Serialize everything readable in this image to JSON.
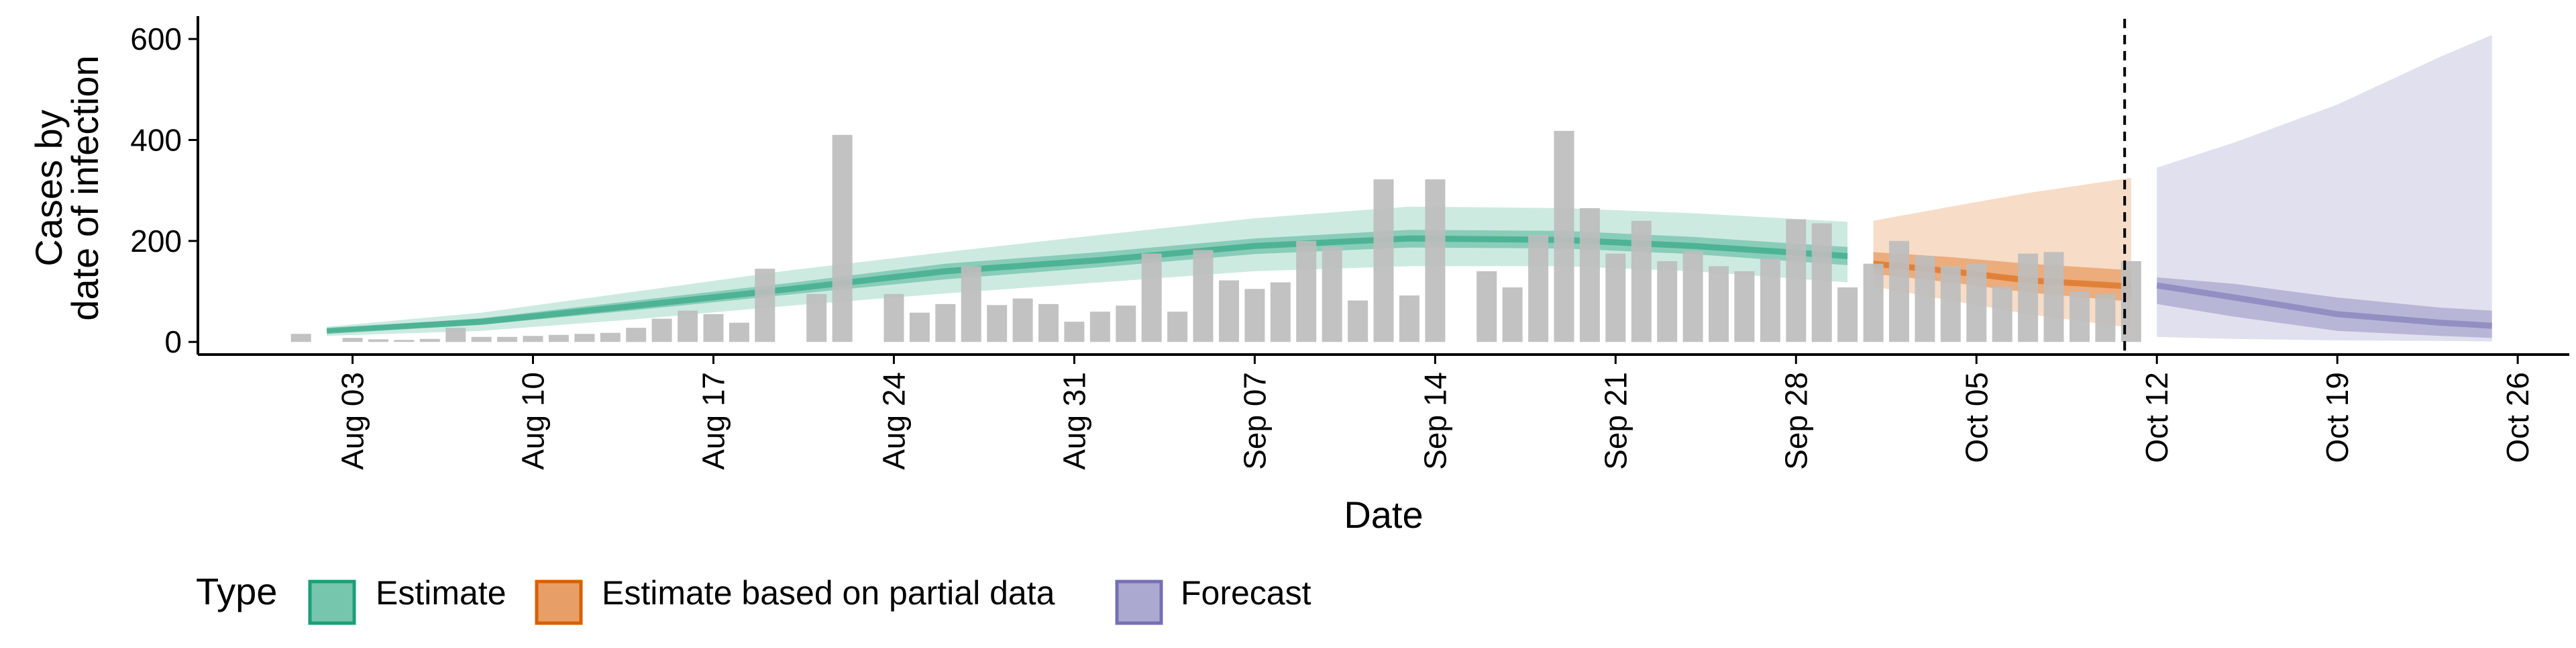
{
  "chart_data": {
    "type": "bar",
    "xlabel": "Date",
    "ylabel_lines": [
      "Cases by",
      "date of infection"
    ],
    "ylim": [
      -25,
      640
    ],
    "yticks": [
      0,
      200,
      400,
      600
    ],
    "x_start_date": "2020-07-28",
    "x_end_date": "2020-10-28",
    "xticks": [
      {
        "date": "2020-08-03",
        "label": "Aug 03"
      },
      {
        "date": "2020-08-10",
        "label": "Aug 10"
      },
      {
        "date": "2020-08-17",
        "label": "Aug 17"
      },
      {
        "date": "2020-08-24",
        "label": "Aug 24"
      },
      {
        "date": "2020-08-31",
        "label": "Aug 31"
      },
      {
        "date": "2020-09-07",
        "label": "Sep 07"
      },
      {
        "date": "2020-09-14",
        "label": "Sep 14"
      },
      {
        "date": "2020-09-21",
        "label": "Sep 21"
      },
      {
        "date": "2020-09-28",
        "label": "Sep 28"
      },
      {
        "date": "2020-10-05",
        "label": "Oct 05"
      },
      {
        "date": "2020-10-12",
        "label": "Oct 12"
      },
      {
        "date": "2020-10-19",
        "label": "Oct 19"
      },
      {
        "date": "2020-10-26",
        "label": "Oct 26"
      }
    ],
    "vline_date": "2020-10-11",
    "bars": {
      "color": "#bdbdbd",
      "dates": [
        "2020-08-01",
        "2020-08-03",
        "2020-08-04",
        "2020-08-05",
        "2020-08-06",
        "2020-08-07",
        "2020-08-08",
        "2020-08-09",
        "2020-08-10",
        "2020-08-11",
        "2020-08-12",
        "2020-08-13",
        "2020-08-14",
        "2020-08-15",
        "2020-08-16",
        "2020-08-17",
        "2020-08-18",
        "2020-08-19",
        "2020-08-21",
        "2020-08-22",
        "2020-08-24",
        "2020-08-25",
        "2020-08-26",
        "2020-08-27",
        "2020-08-28",
        "2020-08-29",
        "2020-08-30",
        "2020-08-31",
        "2020-09-01",
        "2020-09-02",
        "2020-09-03",
        "2020-09-04",
        "2020-09-05",
        "2020-09-06",
        "2020-09-07",
        "2020-09-08",
        "2020-09-09",
        "2020-09-10",
        "2020-09-11",
        "2020-09-12",
        "2020-09-13",
        "2020-09-14",
        "2020-09-16",
        "2020-09-17",
        "2020-09-18",
        "2020-09-19",
        "2020-09-20",
        "2020-09-21",
        "2020-09-22",
        "2020-09-23",
        "2020-09-24",
        "2020-09-25",
        "2020-09-26",
        "2020-09-27",
        "2020-09-28",
        "2020-09-29",
        "2020-09-30",
        "2020-10-01",
        "2020-10-02",
        "2020-10-03",
        "2020-10-04",
        "2020-10-05",
        "2020-10-06",
        "2020-10-07",
        "2020-10-08",
        "2020-10-09",
        "2020-10-10",
        "2020-10-11"
      ],
      "values": [
        16,
        8,
        5,
        4,
        6,
        28,
        10,
        10,
        12,
        14,
        16,
        18,
        28,
        46,
        62,
        55,
        38,
        145,
        95,
        410,
        95,
        58,
        75,
        150,
        73,
        86,
        75,
        40,
        60,
        72,
        175,
        60,
        182,
        122,
        105,
        118,
        200,
        188,
        82,
        322,
        92,
        322,
        140,
        108,
        212,
        418,
        265,
        175,
        240,
        160,
        180,
        150,
        140,
        165,
        243,
        235,
        108,
        155,
        200,
        170,
        150,
        155,
        110,
        175,
        178,
        100,
        95,
        160
      ]
    },
    "series": [
      {
        "name": "Estimate",
        "color": "#1b9e77",
        "dates": [
          "2020-08-02",
          "2020-08-08",
          "2020-08-14",
          "2020-08-20",
          "2020-08-26",
          "2020-09-01",
          "2020-09-07",
          "2020-09-13",
          "2020-09-19",
          "2020-09-24",
          "2020-09-30"
        ],
        "median": [
          22,
          40,
          72,
          105,
          140,
          162,
          190,
          205,
          202,
          190,
          170
        ],
        "inner_low": [
          18,
          34,
          63,
          94,
          124,
          148,
          174,
          187,
          185,
          174,
          152
        ],
        "inner_high": [
          26,
          47,
          82,
          117,
          155,
          178,
          205,
          222,
          220,
          208,
          188
        ],
        "outer_low": [
          12,
          22,
          45,
          72,
          96,
          118,
          140,
          150,
          150,
          140,
          118
        ],
        "outer_high": [
          30,
          58,
          100,
          142,
          178,
          212,
          245,
          268,
          265,
          255,
          238
        ]
      },
      {
        "name": "Estimate based on partial data",
        "color": "#d95f02",
        "dates": [
          "2020-10-01",
          "2020-10-04",
          "2020-10-07",
          "2020-10-11"
        ],
        "median": [
          155,
          140,
          122,
          110
        ],
        "inner_low": [
          135,
          118,
          98,
          80
        ],
        "inner_high": [
          178,
          168,
          155,
          142
        ],
        "outer_low": [
          110,
          82,
          55,
          28
        ],
        "outer_high": [
          240,
          268,
          295,
          325
        ]
      },
      {
        "name": "Forecast",
        "color": "#7570b3",
        "dates": [
          "2020-10-12",
          "2020-10-15",
          "2020-10-19",
          "2020-10-23",
          "2020-10-25"
        ],
        "median": [
          112,
          88,
          55,
          38,
          32
        ],
        "inner_low": [
          75,
          50,
          22,
          12,
          8
        ],
        "inner_high": [
          128,
          115,
          88,
          68,
          62
        ],
        "outer_low": [
          10,
          6,
          3,
          2,
          1
        ],
        "outer_high": [
          345,
          395,
          470,
          565,
          608
        ]
      }
    ],
    "legend": {
      "title": "Type",
      "position": "bottom",
      "items": [
        "Estimate",
        "Estimate based on partial data",
        "Forecast"
      ]
    },
    "grid": false
  }
}
